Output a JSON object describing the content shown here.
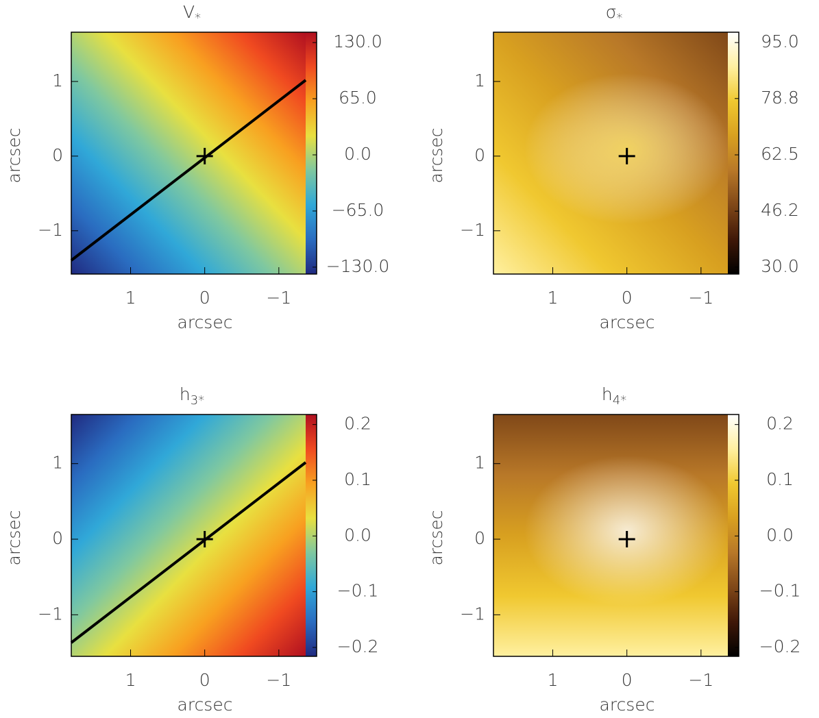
{
  "chart_data": [
    {
      "type": "heatmap",
      "title": "V",
      "title_subscript": "*",
      "xlabel": "arcsec",
      "ylabel": "arcsec",
      "xlim": [
        1.8,
        -1.51
      ],
      "ylim": [
        -1.58,
        1.66
      ],
      "xticks": [
        1,
        0,
        {
          "value": -1,
          "label": "−1"
        }
      ],
      "yticks": [
        {
          "value": -1,
          "label": "−1"
        },
        0,
        1
      ],
      "colorbar_lim": [
        -138,
        142
      ],
      "colorbar_ticks": [
        {
          "value": 130,
          "label": "130.0"
        },
        {
          "value": 65,
          "label": "65.0"
        },
        {
          "value": 0,
          "label": "0.0"
        },
        {
          "value": -65,
          "label": "−65.0"
        },
        {
          "value": -130,
          "label": "−130.0"
        }
      ],
      "colormap": [
        "#b01020",
        "#f04a20",
        "#f8a020",
        "#e8e040",
        "#7fc8a0",
        "#30a8d8",
        "#2a6cc0",
        "#202a80"
      ]
    },
    {
      "type": "heatmap",
      "title": "σ",
      "title_subscript": "*",
      "xlabel": "arcsec",
      "ylabel": "arcsec",
      "xlim": [
        1.8,
        -1.51
      ],
      "ylim": [
        -1.58,
        1.66
      ],
      "xticks": [
        1,
        0,
        {
          "value": -1,
          "label": "−1"
        }
      ],
      "yticks": [
        {
          "value": -1,
          "label": "−1"
        },
        0,
        1
      ],
      "colorbar_lim": [
        28,
        98
      ],
      "colorbar_ticks": [
        {
          "value": 95,
          "label": "95.0"
        },
        {
          "value": 78.8,
          "label": "78.8"
        },
        {
          "value": 62.5,
          "label": "62.5"
        },
        {
          "value": 46.2,
          "label": "46.2"
        },
        {
          "value": 30,
          "label": "30.0"
        }
      ],
      "colormap": [
        "#ffffff",
        "#fff0a0",
        "#f0c830",
        "#d8a020",
        "#b87828",
        "#804818",
        "#401808",
        "#000000"
      ]
    },
    {
      "type": "heatmap",
      "title": "h",
      "title_subscript": "3*",
      "xlabel": "arcsec",
      "ylabel": "arcsec",
      "xlim": [
        1.8,
        -1.51
      ],
      "ylim": [
        -1.55,
        1.65
      ],
      "xticks": [
        1,
        0,
        {
          "value": -1,
          "label": "−1"
        }
      ],
      "yticks": [
        {
          "value": -1,
          "label": "−1"
        },
        0,
        1
      ],
      "colorbar_lim": [
        -0.216,
        0.218
      ],
      "colorbar_ticks": [
        0.2,
        0.1,
        {
          "value": 0,
          "label": "0.0"
        },
        {
          "value": -0.1,
          "label": "−0.1"
        },
        {
          "value": -0.2,
          "label": "−0.2"
        }
      ],
      "colormap": [
        "#b01020",
        "#f04a20",
        "#f8a020",
        "#e8e040",
        "#7fc8a0",
        "#30a8d8",
        "#2a6cc0",
        "#202a80"
      ]
    },
    {
      "type": "heatmap",
      "title": "h",
      "title_subscript": "4*",
      "xlabel": "arcsec",
      "ylabel": "arcsec",
      "xlim": [
        1.8,
        -1.51
      ],
      "ylim": [
        -1.55,
        1.65
      ],
      "xticks": [
        1,
        0,
        {
          "value": -1,
          "label": "−1"
        }
      ],
      "yticks": [
        {
          "value": -1,
          "label": "−1"
        },
        0,
        1
      ],
      "colorbar_lim": [
        -0.216,
        0.218
      ],
      "colorbar_ticks": [
        0.2,
        0.1,
        {
          "value": 0,
          "label": "0.0"
        },
        {
          "value": -0.1,
          "label": "−0.1"
        },
        {
          "value": -0.2,
          "label": "−0.2"
        }
      ],
      "colormap": [
        "#ffffff",
        "#fff0a0",
        "#f0c830",
        "#d8a020",
        "#b87828",
        "#804818",
        "#401808",
        "#000000"
      ]
    }
  ]
}
